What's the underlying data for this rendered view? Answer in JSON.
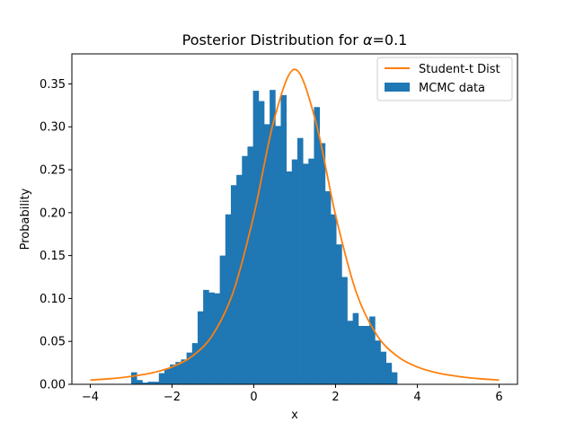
{
  "chart_data": {
    "type": "bar",
    "title_prefix": "Posterior Distribution for ",
    "title_symbol": "α",
    "title_suffix": "=0.1",
    "xlabel": "x",
    "ylabel": "Probability",
    "xlim": [
      -4.45,
      6.45
    ],
    "ylim": [
      0,
      0.385
    ],
    "xticks": [
      -4,
      -2,
      0,
      2,
      4,
      6
    ],
    "xtick_labels": [
      "−4",
      "−2",
      "0",
      "2",
      "4",
      "6"
    ],
    "yticks": [
      0.0,
      0.05,
      0.1,
      0.15,
      0.2,
      0.25,
      0.3,
      0.35
    ],
    "ytick_labels": [
      "0.00",
      "0.05",
      "0.10",
      "0.15",
      "0.20",
      "0.25",
      "0.30",
      "0.35"
    ],
    "grid": false,
    "legend_position": "top-right",
    "histogram": {
      "name": "MCMC data",
      "color": "#1f77b4",
      "bin_start": -3.0,
      "bin_width": 0.1355,
      "values": [
        0.014,
        0.005,
        0.002,
        0.003,
        0.003,
        0.013,
        0.018,
        0.023,
        0.026,
        0.029,
        0.037,
        0.048,
        0.085,
        0.11,
        0.107,
        0.106,
        0.15,
        0.198,
        0.232,
        0.244,
        0.266,
        0.277,
        0.342,
        0.33,
        0.303,
        0.343,
        0.301,
        0.337,
        0.248,
        0.262,
        0.287,
        0.257,
        0.263,
        0.323,
        0.281,
        0.225,
        0.198,
        0.163,
        0.125,
        0.074,
        0.083,
        0.068,
        0.068,
        0.079,
        0.051,
        0.038,
        0.025,
        0.014,
        0.0,
        0.0
      ]
    },
    "series": [
      {
        "name": "Student-t Dist",
        "type": "line",
        "color": "#ff7f0e",
        "x": [
          -4.0,
          -3.5,
          -3.0,
          -2.5,
          -2.0,
          -1.5,
          -1.0,
          -0.5,
          0.0,
          0.5,
          1.0,
          1.5,
          2.0,
          2.5,
          3.0,
          3.5,
          4.0,
          4.5,
          5.0,
          5.5,
          6.0
        ],
        "y": [
          0.005,
          0.0066,
          0.0092,
          0.0132,
          0.0202,
          0.033,
          0.058,
          0.108,
          0.197,
          0.309,
          0.367,
          0.309,
          0.197,
          0.108,
          0.058,
          0.033,
          0.0202,
          0.0132,
          0.0092,
          0.0066,
          0.005
        ]
      }
    ]
  }
}
